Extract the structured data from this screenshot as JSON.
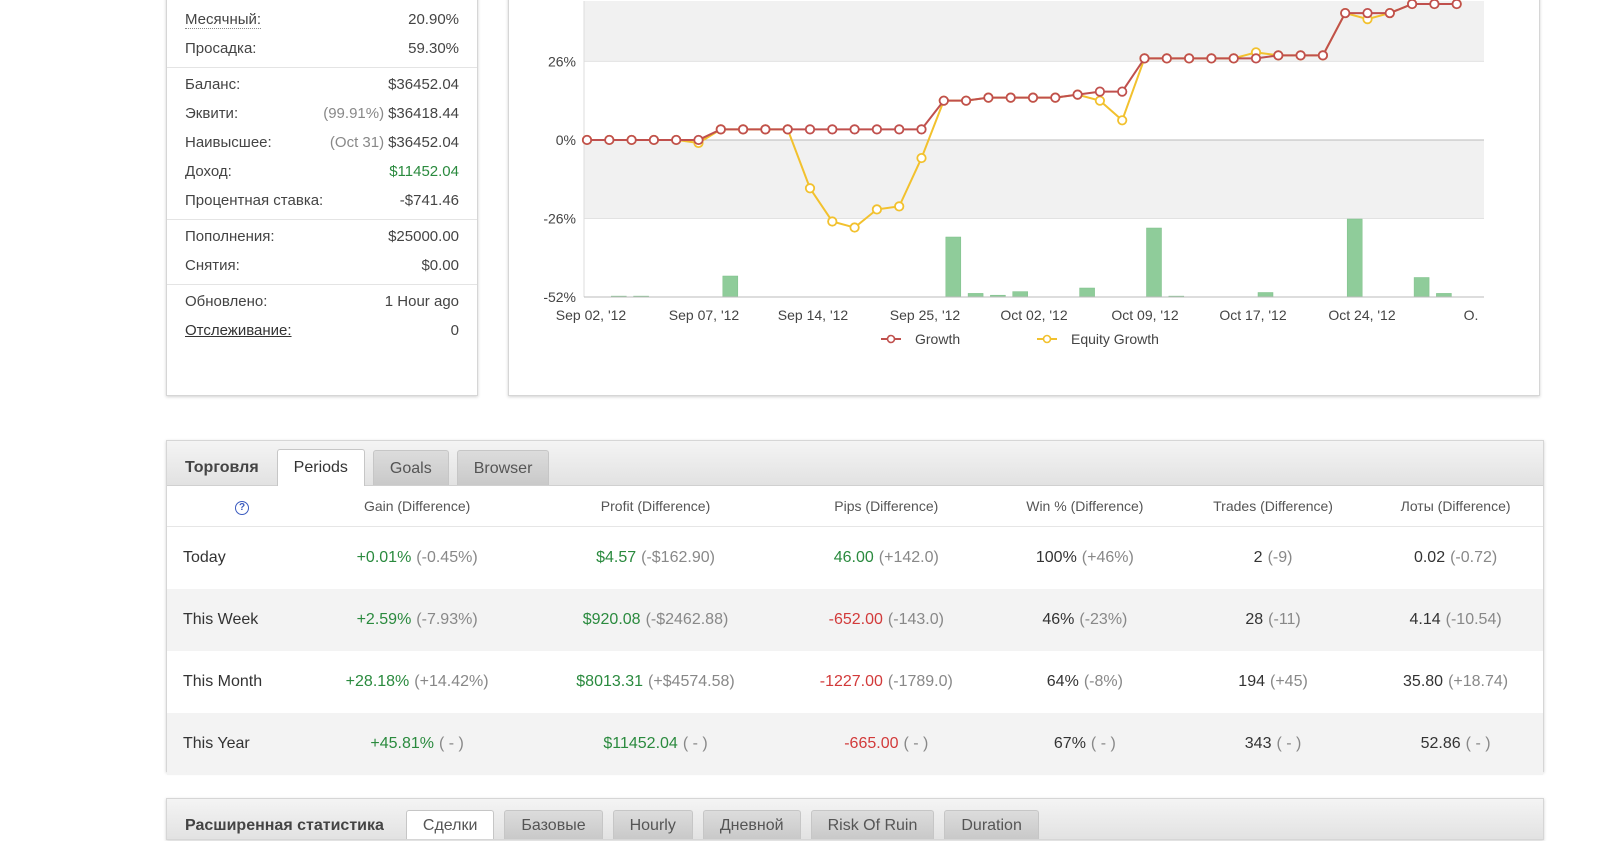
{
  "stats": {
    "groups": [
      [
        {
          "label": "Месячный:",
          "value": "20.90%",
          "dotted": true
        },
        {
          "label": "Просадка:",
          "value": "59.30%"
        }
      ],
      [
        {
          "label": "Баланс:",
          "value": "$36452.04"
        },
        {
          "label": "Эквити:",
          "sub": "(99.91%)",
          "value": "$36418.44"
        },
        {
          "label": "Наивысшее:",
          "sub": "(Oct 31)",
          "value": "$36452.04"
        },
        {
          "label": "Доход:",
          "value": "$11452.04",
          "green": true
        },
        {
          "label": "Процентная ставка:",
          "value": "-$741.46"
        }
      ],
      [
        {
          "label": "Пополнения:",
          "value": "$25000.00"
        },
        {
          "label": "Снятия:",
          "value": "$0.00"
        }
      ],
      [
        {
          "label": "Обновлено:",
          "value": "1 Hour ago"
        },
        {
          "label": "Отслеживание:",
          "value": "0",
          "link": true
        }
      ]
    ]
  },
  "chart_data": {
    "type": "line",
    "y_tick_labels": [
      "26%",
      "0%",
      "-26%",
      "-52%"
    ],
    "y_ticks": [
      26,
      0,
      -26,
      -52
    ],
    "ylim": [
      -52,
      46
    ],
    "x_tick_labels": [
      "Sep 02, '12",
      "Sep 07, '12",
      "Sep 14, '12",
      "Sep 25, '12",
      "Oct 02, '12",
      "Oct 09, '12",
      "Oct 17, '12",
      "Oct 24, '12",
      "O."
    ],
    "series": [
      {
        "name": "Growth",
        "color": "#c0504d",
        "values": [
          0,
          0,
          0,
          0,
          0,
          0,
          3.5,
          3.5,
          3.5,
          3.5,
          3.5,
          3.5,
          3.5,
          3.5,
          3.5,
          3.5,
          13,
          13,
          14,
          14,
          14,
          14,
          15,
          16,
          16,
          27,
          27,
          27,
          27,
          27,
          27,
          28,
          28,
          28,
          42,
          42,
          42,
          45,
          45,
          45
        ]
      },
      {
        "name": "Equity Growth",
        "color": "#f2c12e",
        "values": [
          0,
          0,
          0,
          0,
          0,
          -1,
          3.5,
          3.5,
          3.5,
          3.5,
          -16,
          -27,
          -29,
          -23,
          -22,
          -6,
          13,
          13,
          14,
          14,
          14,
          14,
          15,
          13,
          6.5,
          27,
          27,
          27,
          27,
          27,
          29,
          28,
          28,
          28,
          42,
          40,
          42,
          45,
          45,
          45
        ]
      }
    ],
    "bars": {
      "color": "#8fcc9a",
      "values": [
        0,
        0.3,
        0.3,
        0,
        0,
        0,
        7,
        0,
        0,
        0,
        0,
        0,
        0,
        0,
        0,
        0,
        20,
        1.2,
        0.6,
        1.8,
        0,
        0,
        3,
        0,
        0,
        23,
        0.3,
        0,
        0,
        0,
        1.5,
        0,
        0,
        0,
        26,
        0,
        0,
        6.5,
        1.2,
        0
      ]
    },
    "grid": true
  },
  "trade": {
    "title": "Торговля",
    "tabs": [
      "Periods",
      "Goals",
      "Browser"
    ],
    "columns": [
      "Gain (Difference)",
      "Profit (Difference)",
      "Pips (Difference)",
      "Win % (Difference)",
      "Trades (Difference)",
      "Лоты (Difference)"
    ],
    "rows": [
      {
        "period": "Today",
        "gain": "+0.01%",
        "gain_diff": "(-0.45%)",
        "profit": "$4.57",
        "profit_diff": "(-$162.90)",
        "pips": "46.00",
        "pips_diff": "(+142.0)",
        "win": "100%",
        "win_diff": "(+46%)",
        "trades": "2",
        "trades_diff": "(-9)",
        "lots": "0.02",
        "lots_diff": "(-0.72)"
      },
      {
        "period": "This Week",
        "gain": "+2.59%",
        "gain_diff": "(-7.93%)",
        "profit": "$920.08",
        "profit_diff": "(-$2462.88)",
        "pips": "-652.00",
        "pips_diff": "(-143.0)",
        "win": "46%",
        "win_diff": "(-23%)",
        "trades": "28",
        "trades_diff": "(-11)",
        "lots": "4.14",
        "lots_diff": "(-10.54)"
      },
      {
        "period": "This Month",
        "gain": "+28.18%",
        "gain_diff": "(+14.42%)",
        "profit": "$8013.31",
        "profit_diff": "(+$4574.58)",
        "pips": "-1227.00",
        "pips_diff": "(-1789.0)",
        "win": "64%",
        "win_diff": "(-8%)",
        "trades": "194",
        "trades_diff": "(+45)",
        "lots": "35.80",
        "lots_diff": "(+18.74)"
      },
      {
        "period": "This Year",
        "gain": "+45.81%",
        "gain_diff": "( - )",
        "profit": "$11452.04",
        "profit_diff": "( - )",
        "pips": "-665.00",
        "pips_diff": "( - )",
        "win": "67%",
        "win_diff": "( - )",
        "trades": "343",
        "trades_diff": "( - )",
        "lots": "52.86",
        "lots_diff": "( - )"
      }
    ]
  },
  "ext": {
    "title": "Расширенная статистика",
    "tabs": [
      "Сделки",
      "Базовые",
      "Hourly",
      "Дневной",
      "Risk Of Ruin",
      "Duration"
    ]
  }
}
